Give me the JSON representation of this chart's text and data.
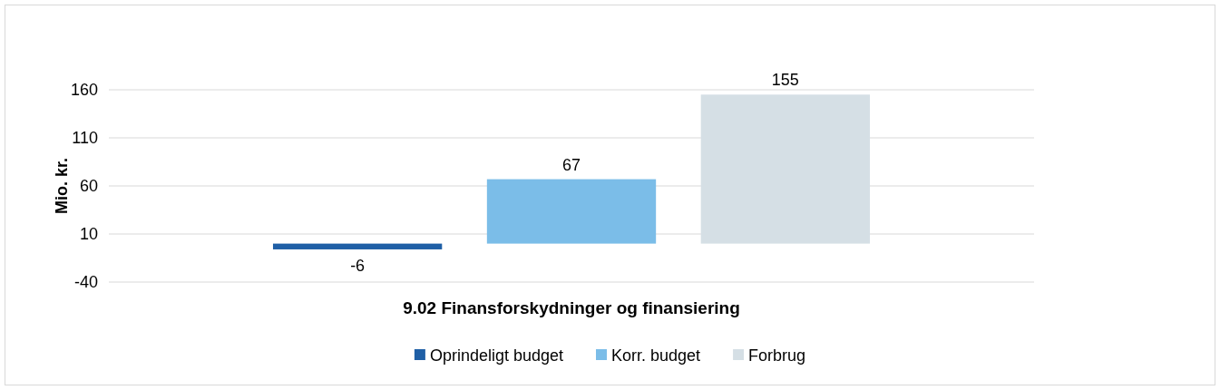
{
  "chart_data": {
    "type": "bar",
    "categories": [
      "9.02 Finansforskydninger og finansiering"
    ],
    "series": [
      {
        "name": "Oprindeligt budget",
        "color": "#1f5fa6",
        "values": [
          -6
        ]
      },
      {
        "name": "Korr. budget",
        "color": "#7bbde8",
        "values": [
          67
        ]
      },
      {
        "name": "Forbrug",
        "color": "#d5dfe5",
        "values": [
          155
        ]
      }
    ],
    "ylabel": "Mio. kr.",
    "ylim": [
      -40,
      160
    ],
    "yticks": [
      -40,
      10,
      60,
      110,
      160
    ],
    "grid": "y",
    "legend": "bottom",
    "data_labels": true
  }
}
